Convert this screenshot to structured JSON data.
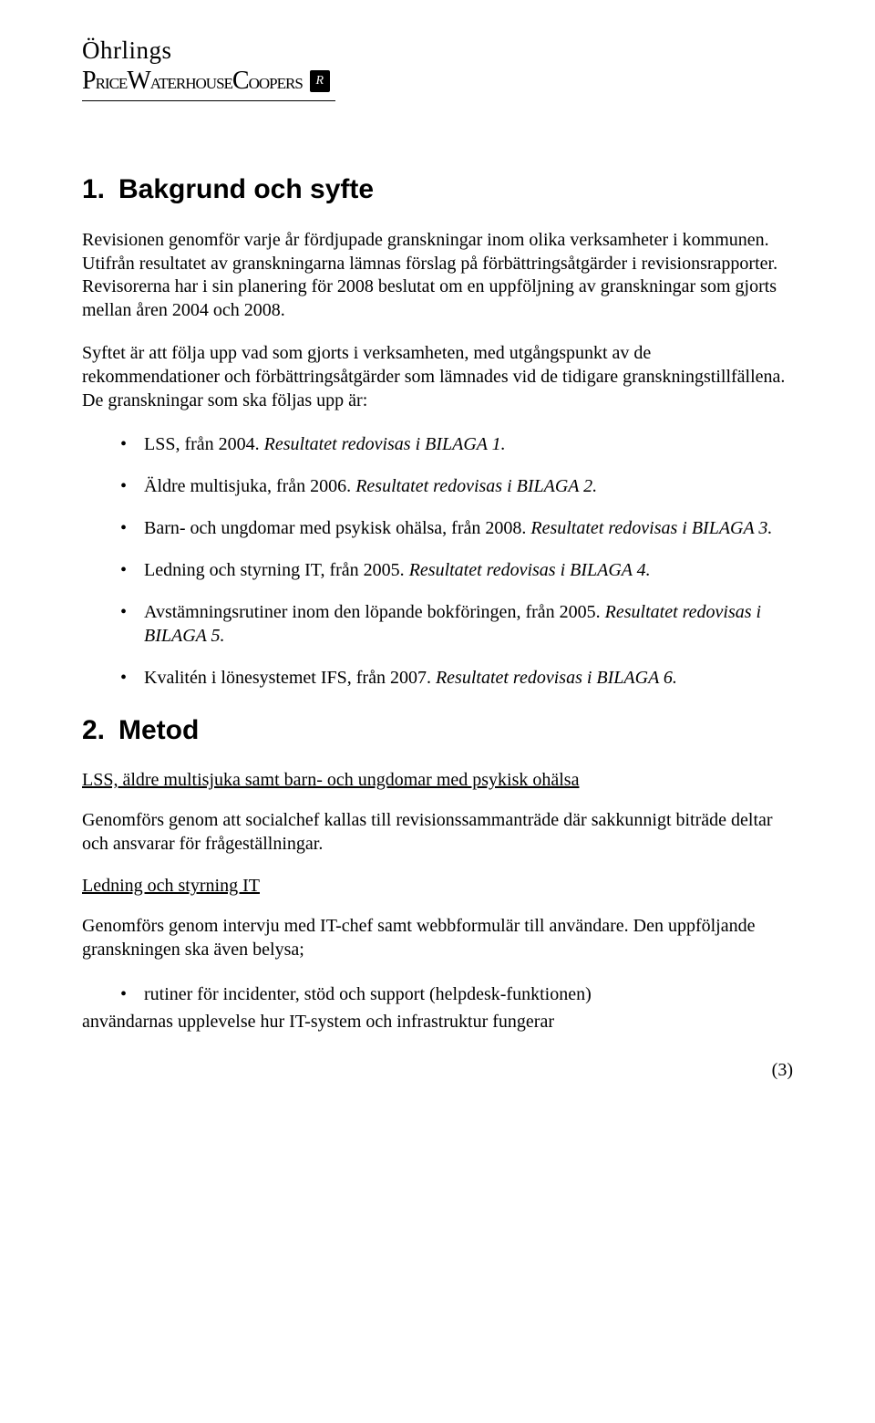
{
  "logo": {
    "line1": "Öhrlings",
    "line2": "PRICEWATERHOUSECOOPERS",
    "badge": "R"
  },
  "section1": {
    "number": "1.",
    "title": "Bakgrund och syfte",
    "p1": "Revisionen genomför varje år fördjupade granskningar inom olika verksamheter i kommunen. Utifrån resultatet av granskningarna lämnas förslag på förbättringsåtgärder i revisionsrapporter. Revisorerna har i sin planering för 2008 beslutat om en uppföljning av granskningar som gjorts mellan åren 2004 och 2008.",
    "p2": "Syftet är att följa upp vad som gjorts i verksamheten, med utgångspunkt av de rekommendationer och förbättringsåtgärder som lämnades vid de tidigare granskningstillfällena. De granskningar som ska följas upp är:",
    "bullets": [
      {
        "plain": "LSS, från 2004. ",
        "italic": "Resultatet redovisas i BILAGA 1."
      },
      {
        "plain": "Äldre multisjuka, från 2006. ",
        "italic": "Resultatet redovisas i BILAGA 2."
      },
      {
        "plain": "Barn- och ungdomar med psykisk ohälsa, från 2008. ",
        "italic": "Resultatet redovisas i BILAGA 3."
      },
      {
        "plain": "Ledning och styrning IT, från 2005. ",
        "italic": "Resultatet redovisas i BILAGA 4."
      },
      {
        "plain": "Avstämningsrutiner inom den löpande bokföringen, från 2005. ",
        "italic": "Resultatet redovisas i BILAGA 5."
      },
      {
        "plain": "Kvalitén i lönesystemet IFS, från 2007. ",
        "italic": "Resultatet redovisas i BILAGA 6."
      }
    ]
  },
  "section2": {
    "number": "2.",
    "title": "Metod",
    "sub1": "LSS, äldre multisjuka samt barn- och ungdomar med psykisk ohälsa",
    "p1": "Genomförs genom att socialchef kallas till revisionssammanträde där sakkunnigt biträde deltar och ansvarar för frågeställningar.",
    "sub2": "Ledning och styrning IT",
    "p2": "Genomförs genom intervju med IT-chef samt webbformulär till användare. Den uppföljande granskningen ska även belysa;",
    "bullets2": [
      "rutiner för incidenter, stöd och support (helpdesk-funktionen)"
    ],
    "trail": "användarnas upplevelse hur IT-system och infrastruktur fungerar"
  },
  "pagenum": "(3)"
}
